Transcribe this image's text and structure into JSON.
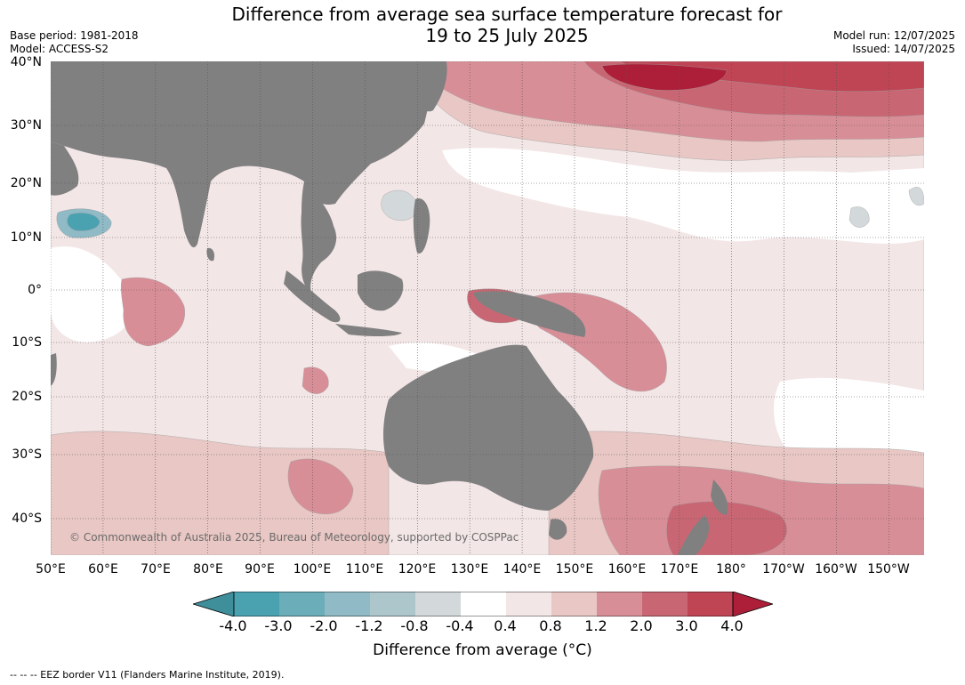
{
  "header": {
    "title_line1": "Difference from average sea surface temperature forecast for",
    "title_line2": "19 to 25 July 2025",
    "base_period": "Base period: 1981-2018",
    "model": "Model: ACCESS-S2",
    "model_run": "Model run: 12/07/2025",
    "issued": "Issued: 14/07/2025"
  },
  "map": {
    "lat_labels": [
      "40°N",
      "30°N",
      "20°N",
      "10°N",
      "0°",
      "10°S",
      "20°S",
      "30°S",
      "40°S"
    ],
    "lon_labels": [
      "50°E",
      "60°E",
      "70°E",
      "80°E",
      "90°E",
      "100°E",
      "110°E",
      "120°E",
      "130°E",
      "140°E",
      "150°E",
      "160°E",
      "170°E",
      "180°",
      "170°W",
      "160°W",
      "150°W"
    ],
    "copyright": "© Commonwealth of Australia 2025, Bureau of Meteorology, supported by COSPPac",
    "land_color": "#808080",
    "colors": {
      "c_m4": "#3f8f9b",
      "c_m3": "#4aa2b1",
      "c_m2": "#6badb9",
      "c_m12": "#8fbac6",
      "c_m08": "#acc6cc",
      "c_m04": "#d3d9db",
      "c_0": "#ffffff",
      "c_04": "#f3e6e6",
      "c_08": "#e8c7c4",
      "c_12": "#d88e97",
      "c_2": "#c86773",
      "c_3": "#bf4555",
      "c_4": "#ad1f39"
    }
  },
  "colorbar": {
    "ticks": [
      "-4.0",
      "-3.0",
      "-2.0",
      "-1.2",
      "-0.8",
      "-0.4",
      "0.4",
      "0.8",
      "1.2",
      "2.0",
      "3.0",
      "4.0"
    ],
    "label": "Difference from average (°C)",
    "bin_colors": [
      "#4aa2b1",
      "#6badb9",
      "#8fbac6",
      "#acc6cc",
      "#d3d9db",
      "#ffffff",
      "#f3e6e6",
      "#e8c7c4",
      "#d88e97",
      "#c86773",
      "#bf4555"
    ],
    "under_color": "#3f8f9b",
    "over_color": "#ad1f39"
  },
  "footnote": "--  --  -- EEZ border V11 (Flanders Marine Institute, 2019)."
}
